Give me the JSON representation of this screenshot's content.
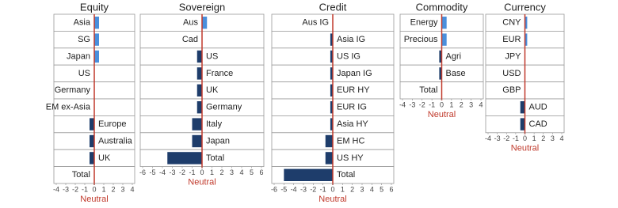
{
  "chart_data": [
    {
      "type": "bar",
      "orientation": "horizontal",
      "title": "Equity",
      "categories": [
        "Asia",
        "SG",
        "Japan",
        "US",
        "Germany",
        "EM ex-Asia",
        "Europe",
        "Australia",
        "UK",
        "Total"
      ],
      "values": [
        0.5,
        0.5,
        0.5,
        0,
        0,
        0,
        -0.5,
        -0.5,
        -0.5,
        0
      ],
      "xlim": [
        -4,
        4
      ],
      "xticks": [
        -4,
        -3,
        -2,
        -1,
        0,
        1,
        2,
        3,
        4
      ],
      "xlabel": "Neutral",
      "colors": {
        "positive": "#4a8fdc",
        "negative": "#1e3d6b",
        "neutral": "#c0392b"
      }
    },
    {
      "type": "bar",
      "orientation": "horizontal",
      "title": "Sovereign",
      "categories": [
        "Aus",
        "Cad",
        "US",
        "France",
        "UK",
        "Germany",
        "Italy",
        "Japan",
        "Total"
      ],
      "values": [
        0.5,
        0,
        -0.5,
        -0.5,
        -0.5,
        -0.5,
        -1,
        -1,
        -3.5
      ],
      "xlim": [
        -6,
        6
      ],
      "xticks": [
        -6,
        -5,
        -4,
        -3,
        -2,
        -1,
        0,
        1,
        2,
        3,
        4,
        5,
        6
      ],
      "xlabel": "Neutral",
      "colors": {
        "positive": "#4a8fdc",
        "negative": "#1e3d6b",
        "neutral": "#c0392b"
      }
    },
    {
      "type": "bar",
      "orientation": "horizontal",
      "title": "Credit",
      "categories": [
        "Aus IG",
        "Asia IG",
        "US IG",
        "Japan IG",
        "EUR HY",
        "EUR IG",
        "Asia HY",
        "EM HC",
        "US HY",
        "Total"
      ],
      "values": [
        0,
        -0.25,
        -0.25,
        -0.25,
        -0.25,
        -0.25,
        -0.25,
        -0.75,
        -0.75,
        -5
      ],
      "xlim": [
        -6,
        6
      ],
      "xticks": [
        -6,
        -5,
        -4,
        -3,
        -2,
        -1,
        0,
        1,
        2,
        3,
        4,
        5,
        6
      ],
      "xlabel": "Neutral",
      "colors": {
        "positive": "#4a8fdc",
        "negative": "#1e3d6b",
        "neutral": "#c0392b"
      }
    },
    {
      "type": "bar",
      "orientation": "horizontal",
      "title": "Commodity",
      "categories": [
        "Energy",
        "Precious",
        "Agri",
        "Base",
        "Total"
      ],
      "values": [
        0.5,
        0.5,
        -0.25,
        -0.25,
        0
      ],
      "xlim": [
        -4,
        4
      ],
      "xticks": [
        -4,
        -3,
        -2,
        -1,
        0,
        1,
        2,
        3,
        4
      ],
      "xlabel": "Neutral",
      "colors": {
        "positive": "#4a8fdc",
        "negative": "#1e3d6b",
        "neutral": "#c0392b"
      }
    },
    {
      "type": "bar",
      "orientation": "horizontal",
      "title": "Currency",
      "categories": [
        "CNY",
        "EUR",
        "JPY",
        "USD",
        "GBP",
        "AUD",
        "CAD"
      ],
      "values": [
        0.25,
        0.25,
        0,
        0,
        0,
        -0.5,
        -0.5
      ],
      "xlim": [
        -4,
        4
      ],
      "xticks": [
        -4,
        -3,
        -2,
        -1,
        0,
        1,
        2,
        3,
        4
      ],
      "xlabel": "Neutral",
      "colors": {
        "positive": "#4a8fdc",
        "negative": "#1e3d6b",
        "neutral": "#c0392b"
      }
    }
  ]
}
